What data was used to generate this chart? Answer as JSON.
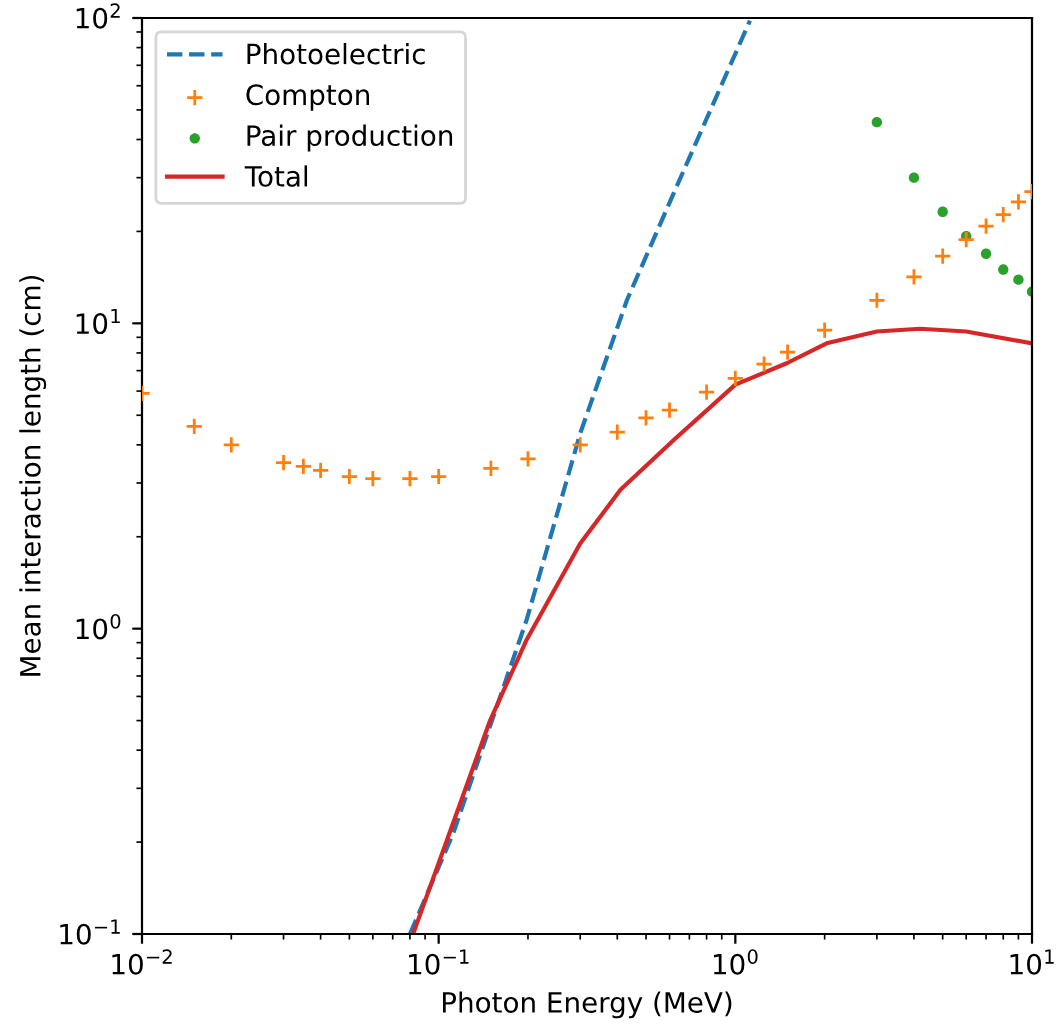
{
  "chart_data": {
    "type": "line",
    "xlabel": "Photon Energy (MeV)",
    "ylabel": "Mean interaction length (cm)",
    "log": "xy",
    "grid": false,
    "legend": "top left",
    "xlim": [
      0.01,
      10
    ],
    "ylim": [
      0.1,
      100
    ],
    "xticks": [
      {
        "value": 0.01,
        "label": "10$^{−2}$"
      },
      {
        "value": 0.1,
        "label": "10$^{−1}$"
      },
      {
        "value": 1,
        "label": "10$^{0}$"
      },
      {
        "value": 10,
        "label": "10$^{1}$"
      }
    ],
    "yticks": [
      {
        "value": 0.1,
        "label": "10$^{−1}$"
      },
      {
        "value": 1,
        "label": "10$^{0}$"
      },
      {
        "value": 10,
        "label": "10$^{1}$"
      },
      {
        "value": 100,
        "label": "10$^{2}$"
      }
    ],
    "series": [
      {
        "name": "Photoelectric",
        "line_style": "dashed",
        "marker": "none",
        "color": "#1f77b4",
        "x": [
          0.08,
          0.112,
          0.198,
          0.3,
          0.431,
          0.62,
          1.12
        ],
        "values": [
          0.1,
          0.214,
          1.07,
          4.36,
          11.9,
          26.7,
          98
        ]
      },
      {
        "name": "Compton",
        "type": "scatter",
        "marker": "plus",
        "color": "#ff7f0e",
        "x": [
          0.01,
          0.015,
          0.02,
          0.03,
          0.035,
          0.04,
          0.05,
          0.06,
          0.08,
          0.1,
          0.15,
          0.2,
          0.3,
          0.4,
          0.5,
          0.6,
          0.8,
          1.0,
          1.25,
          1.5,
          2,
          3,
          4,
          5,
          6,
          7,
          8,
          9,
          10
        ],
        "values": [
          5.9,
          4.6,
          4.0,
          3.5,
          3.4,
          3.3,
          3.15,
          3.1,
          3.1,
          3.15,
          3.35,
          3.6,
          4.0,
          4.4,
          4.9,
          5.2,
          5.95,
          6.6,
          7.35,
          8.05,
          9.5,
          11.9,
          14.2,
          16.6,
          18.8,
          20.8,
          22.7,
          25.0,
          27
        ]
      },
      {
        "name": "Pair production",
        "type": "scatter",
        "marker": "circle",
        "color": "#2ca02c",
        "x": [
          3,
          4,
          5,
          6,
          7,
          8,
          9,
          10
        ],
        "values": [
          45.6,
          30,
          23.2,
          19.3,
          16.9,
          15.0,
          13.9,
          12.7
        ]
      },
      {
        "name": "Total",
        "line_style": "solid",
        "marker": "none",
        "color": "#d62728",
        "x": [
          0.082,
          0.149,
          0.198,
          0.3,
          0.41,
          0.62,
          1.0,
          1.49,
          2.03,
          3.0,
          4.2,
          6.0,
          10
        ],
        "values": [
          0.1,
          0.5,
          0.92,
          1.9,
          2.85,
          4.15,
          6.3,
          7.4,
          8.6,
          9.4,
          9.6,
          9.4,
          8.6
        ]
      }
    ]
  }
}
